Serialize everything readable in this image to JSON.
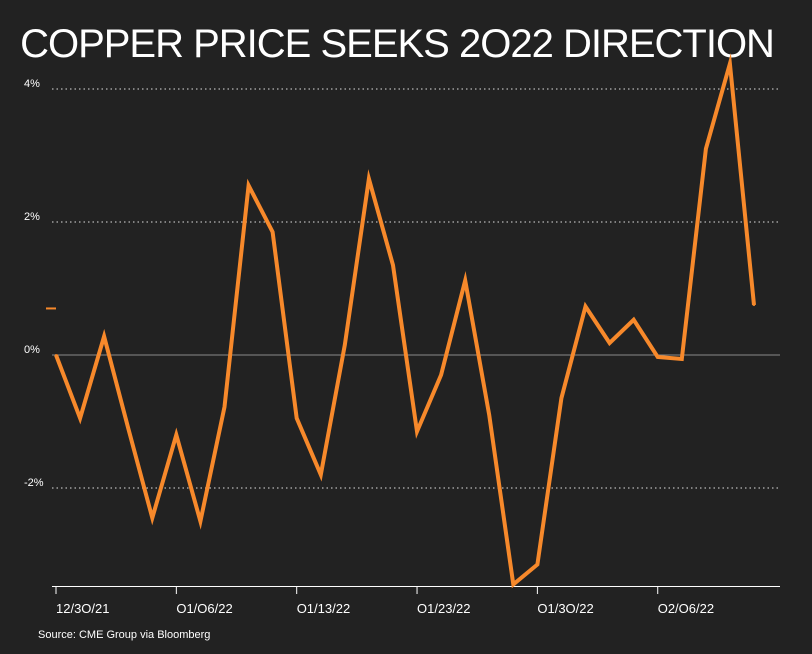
{
  "title": "COPPER PRICE SEEKS 2O22 DIRECTION",
  "source": "Source: CME Group via Bloomberg",
  "colors": {
    "background": "#222222",
    "line": "#F7892B",
    "grid": "#ffffff",
    "text": "#ffffff"
  },
  "chart_data": {
    "type": "line",
    "title": "COPPER PRICE SEEKS 2O22 DIRECTION",
    "xlabel": "",
    "ylabel": "",
    "ylim": [
      -3.5,
      4.4
    ],
    "yticks": [
      4,
      2,
      0,
      -2
    ],
    "ytick_labels": [
      "4%",
      "2%",
      "0%",
      "-2%"
    ],
    "grid": "horizontal dotted",
    "x_tick_labels": [
      {
        "index": 0,
        "label": "12/3O/21"
      },
      {
        "index": 5,
        "label": "O1/O6/22"
      },
      {
        "index": 10,
        "label": "O1/13/22"
      },
      {
        "index": 15,
        "label": "O1/23/22"
      },
      {
        "index": 20,
        "label": "O1/3O/22"
      },
      {
        "index": 25,
        "label": "O2/O6/22"
      }
    ],
    "series": [
      {
        "values": [
          0.0,
          -0.95,
          0.28,
          -1.1,
          -2.45,
          -1.2,
          -2.5,
          -0.78,
          2.55,
          1.85,
          -0.95,
          -1.8,
          0.15,
          2.65,
          1.35,
          -1.15,
          -0.3,
          1.12,
          -0.9,
          -3.45,
          -3.15,
          -0.65,
          0.73,
          0.18,
          0.53,
          -0.03,
          -0.06,
          3.1,
          4.38,
          0.75
        ]
      }
    ],
    "last_value_marker": 0.7
  }
}
